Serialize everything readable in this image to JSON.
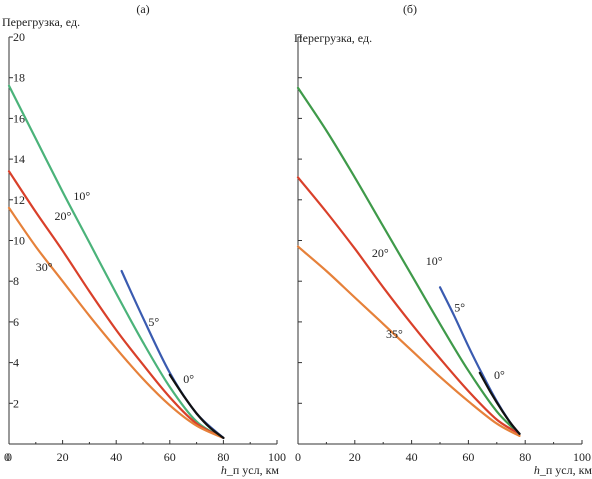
{
  "chart_data": [
    {
      "panel": "(а)",
      "type": "line",
      "ylabel": "Перегрузка, ед.",
      "xlabel": "h_п усл, км",
      "xlim": [
        0,
        100
      ],
      "ylim": [
        0,
        20
      ],
      "xticks": [
        0,
        20,
        40,
        60,
        80,
        100
      ],
      "yticks": [
        2,
        4,
        6,
        8,
        10,
        12,
        14,
        16,
        18,
        20
      ],
      "series": [
        {
          "name": "10°",
          "color": "#4bb37a",
          "x": [
            0,
            10,
            20,
            30,
            40,
            50,
            60,
            70,
            80
          ],
          "y": [
            17.6,
            15.0,
            12.4,
            9.9,
            7.4,
            5.0,
            2.8,
            1.1,
            0.3
          ]
        },
        {
          "name": "20°",
          "color": "#d9402a",
          "x": [
            0,
            10,
            20,
            30,
            40,
            50,
            60,
            70,
            80
          ],
          "y": [
            13.4,
            11.4,
            9.5,
            7.5,
            5.6,
            3.9,
            2.3,
            1.0,
            0.3
          ]
        },
        {
          "name": "30°",
          "color": "#e6813a",
          "x": [
            0,
            10,
            20,
            30,
            40,
            50,
            60,
            70,
            80
          ],
          "y": [
            11.6,
            9.7,
            8.0,
            6.3,
            4.7,
            3.2,
            1.9,
            0.9,
            0.3
          ]
        },
        {
          "name": "5°",
          "color": "#3a5bb0",
          "x": [
            42,
            50,
            60,
            70,
            80
          ],
          "y": [
            8.5,
            6.2,
            3.5,
            1.5,
            0.3
          ]
        },
        {
          "name": "0°",
          "color": "#111111",
          "x": [
            60,
            65,
            70,
            75,
            80
          ],
          "y": [
            3.4,
            2.4,
            1.5,
            0.8,
            0.3
          ]
        }
      ],
      "annotations": [
        {
          "text": "10°",
          "x": 24,
          "y": 12.0
        },
        {
          "text": "20°",
          "x": 17,
          "y": 11.0
        },
        {
          "text": "30°",
          "x": 10,
          "y": 8.5
        },
        {
          "text": "5°",
          "x": 52,
          "y": 5.8
        },
        {
          "text": "0°",
          "x": 65,
          "y": 3.0
        }
      ]
    },
    {
      "panel": "(б)",
      "type": "line",
      "ylabel": "Перегрузка, ед.",
      "xlabel": "h_п усл, км",
      "xlim": [
        0,
        100
      ],
      "ylim": [
        0,
        20
      ],
      "xticks": [
        0,
        20,
        40,
        60,
        80,
        100
      ],
      "yticks": [
        2,
        4,
        6,
        8,
        10,
        12,
        14,
        16,
        18,
        20
      ],
      "series": [
        {
          "name": "10°",
          "color": "#3f9a4a",
          "x": [
            0,
            10,
            20,
            30,
            40,
            50,
            60,
            70,
            78
          ],
          "y": [
            17.5,
            15.4,
            13.1,
            10.7,
            8.3,
            5.9,
            3.6,
            1.6,
            0.5
          ]
        },
        {
          "name": "20°",
          "color": "#d9402a",
          "x": [
            0,
            10,
            20,
            30,
            40,
            50,
            60,
            70,
            78
          ],
          "y": [
            13.1,
            11.4,
            9.6,
            7.7,
            5.9,
            4.2,
            2.6,
            1.2,
            0.5
          ]
        },
        {
          "name": "35°",
          "color": "#e6813a",
          "x": [
            0,
            10,
            20,
            30,
            40,
            50,
            60,
            70,
            78
          ],
          "y": [
            9.7,
            8.5,
            7.2,
            5.9,
            4.6,
            3.3,
            2.1,
            1.0,
            0.4
          ]
        },
        {
          "name": "5°",
          "color": "#3a5bb0",
          "x": [
            50,
            55,
            60,
            65,
            70,
            75,
            78
          ],
          "y": [
            7.7,
            6.3,
            4.8,
            3.4,
            2.1,
            1.0,
            0.5
          ]
        },
        {
          "name": "0°",
          "color": "#111111",
          "x": [
            64,
            68,
            72,
            75,
            78
          ],
          "y": [
            3.5,
            2.5,
            1.6,
            1.0,
            0.5
          ]
        }
      ],
      "annotations": [
        {
          "text": "20°",
          "x": 26,
          "y": 9.2
        },
        {
          "text": "10°",
          "x": 45,
          "y": 8.8
        },
        {
          "text": "5°",
          "x": 55,
          "y": 6.5
        },
        {
          "text": "35°",
          "x": 31,
          "y": 5.2
        },
        {
          "text": "0°",
          "x": 69,
          "y": 3.2
        }
      ]
    }
  ]
}
